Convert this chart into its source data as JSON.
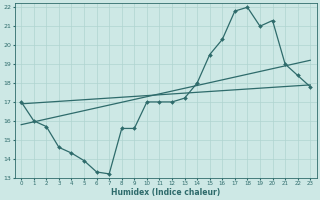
{
  "xlabel": "Humidex (Indice chaleur)",
  "xlim": [
    -0.5,
    23.5
  ],
  "ylim": [
    13,
    22.2
  ],
  "xticks": [
    0,
    1,
    2,
    3,
    4,
    5,
    6,
    7,
    8,
    9,
    10,
    11,
    12,
    13,
    14,
    15,
    16,
    17,
    18,
    19,
    20,
    21,
    22,
    23
  ],
  "yticks": [
    13,
    14,
    15,
    16,
    17,
    18,
    19,
    20,
    21,
    22
  ],
  "bg_color": "#cde8e5",
  "line_color": "#2e6b6b",
  "grid_color": "#b0d4d0",
  "line1_x": [
    0,
    1,
    2,
    3,
    4,
    5,
    6,
    7,
    8,
    9,
    10,
    11,
    12,
    13,
    14,
    15,
    16,
    17,
    18,
    19,
    20,
    21,
    22,
    23
  ],
  "line1_y": [
    17,
    16,
    15.7,
    14.6,
    14.3,
    13.9,
    13.3,
    13.2,
    15.6,
    15.6,
    17,
    17,
    17,
    17.2,
    18,
    19.5,
    20.3,
    21.8,
    22,
    21,
    21.3,
    19,
    18.4,
    17.8
  ],
  "line2_x": [
    0,
    23
  ],
  "line2_y": [
    15.8,
    19.2
  ],
  "line3_x": [
    0,
    23
  ],
  "line3_y": [
    16.9,
    17.9
  ],
  "figwidth": 3.2,
  "figheight": 2.0,
  "dpi": 100
}
